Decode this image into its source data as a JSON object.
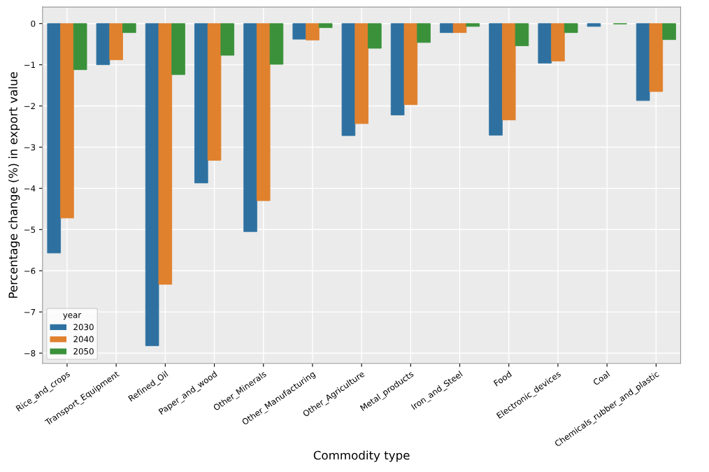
{
  "chart_data": {
    "type": "bar",
    "xlabel": "Commodity type",
    "ylabel": "Percentage change (%) in export value",
    "legend_title": "year",
    "categories": [
      "Rice_and_crops",
      "Transport_Equipment",
      "Refined_Oil",
      "Paper_and_wood",
      "Other_Minerals",
      "Other_Manufacturing",
      "Other_Agriculture",
      "Metal_products",
      "Iron_and_Steel",
      "Food",
      "Electronic_devices",
      "Coal",
      "Chemicals_rubber_and_plastic"
    ],
    "series": [
      {
        "name": "2030",
        "color": "#2e71a0",
        "values": [
          -5.57,
          -1.0,
          -7.82,
          -3.87,
          -5.05,
          -0.38,
          -2.72,
          -2.22,
          -0.22,
          -2.71,
          -0.96,
          -0.07,
          -1.87
        ]
      },
      {
        "name": "2040",
        "color": "#e0812e",
        "values": [
          -4.72,
          -0.88,
          -6.33,
          -3.32,
          -4.3,
          -0.4,
          -2.43,
          -1.97,
          -0.22,
          -2.34,
          -0.91,
          null,
          -1.65
        ]
      },
      {
        "name": "2050",
        "color": "#3a913a",
        "values": [
          -1.12,
          -0.22,
          -1.24,
          -0.77,
          -0.99,
          -0.1,
          -0.6,
          -0.46,
          -0.07,
          -0.54,
          -0.22,
          -0.01,
          -0.39
        ]
      }
    ],
    "ylim": [
      -8.25,
      0.4
    ],
    "yticks": [
      {
        "value": -8,
        "label": "−8"
      },
      {
        "value": -7,
        "label": "−7"
      },
      {
        "value": -6,
        "label": "−6"
      },
      {
        "value": -5,
        "label": "−5"
      },
      {
        "value": -4,
        "label": "−4"
      },
      {
        "value": -3,
        "label": "−3"
      },
      {
        "value": -2,
        "label": "−2"
      },
      {
        "value": -1,
        "label": "−1"
      },
      0
    ],
    "grid": true,
    "legend": "bottom left"
  }
}
